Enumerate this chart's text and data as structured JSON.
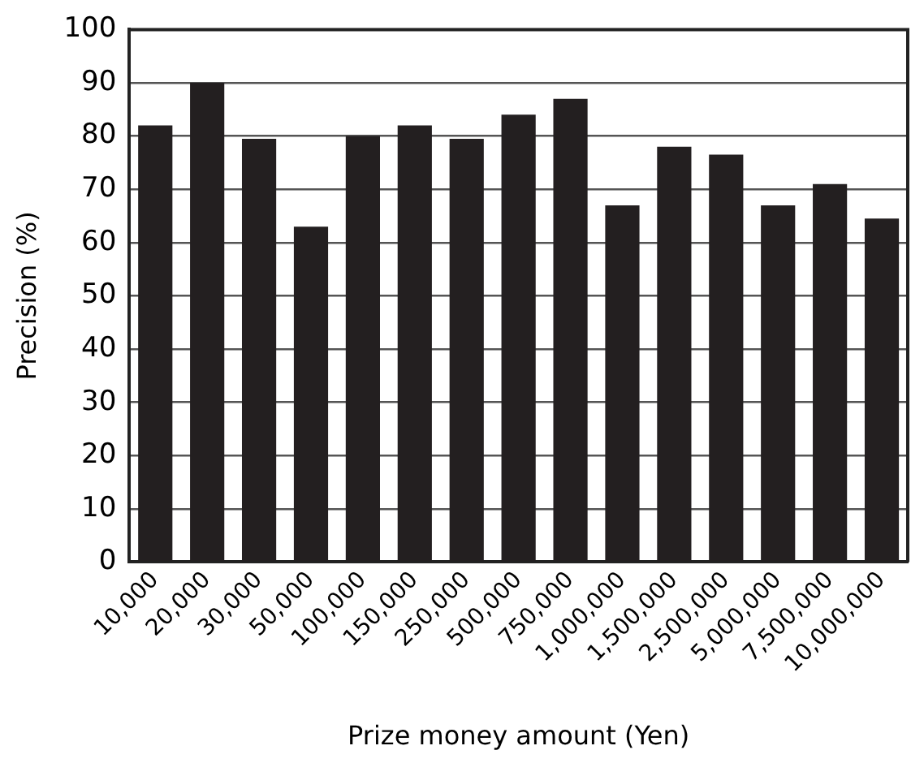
{
  "chart_data": {
    "type": "bar",
    "xlabel": "Prize money amount (Yen)",
    "ylabel": "Precision (%)",
    "categories": [
      "10,000",
      "20,000",
      "30,000",
      "50,000",
      "100,000",
      "150,000",
      "250,000",
      "500,000",
      "750,000",
      "1,000,000",
      "1,500,000",
      "2,500,000",
      "5,000,000",
      "7,500,000",
      "10,000,000"
    ],
    "values": [
      82,
      90,
      79.5,
      63,
      80,
      82,
      79.5,
      84,
      87,
      67,
      78,
      76.5,
      67,
      71,
      64.5
    ],
    "color": "#231f20",
    "ylim": [
      0,
      100
    ],
    "yticks": [
      0,
      10,
      20,
      30,
      40,
      50,
      60,
      70,
      80,
      90,
      100
    ],
    "grid": "y",
    "legend": false
  }
}
